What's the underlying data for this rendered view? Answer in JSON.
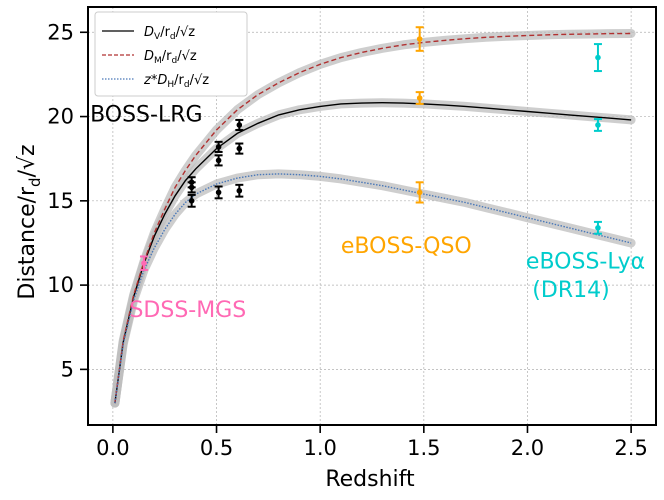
{
  "chart_data": {
    "type": "line",
    "xlabel": "Redshift",
    "ylabel": "Distance/r",
    "ylabel_sub": "d",
    "ylabel_tail": "/√z",
    "xlim": [
      -0.12,
      2.62
    ],
    "ylim": [
      1.7,
      26.5
    ],
    "xticks": [
      0.0,
      0.5,
      1.0,
      1.5,
      2.0,
      2.5
    ],
    "xtick_labels": [
      "0.0",
      "0.5",
      "1.0",
      "1.5",
      "2.0",
      "2.5"
    ],
    "yticks": [
      5,
      10,
      15,
      20,
      25
    ],
    "ytick_labels": [
      "5",
      "10",
      "15",
      "20",
      "25"
    ],
    "grid": true,
    "legend": {
      "position": "top-left",
      "entries": [
        {
          "main": "D",
          "sub": "V",
          "mid": "/r",
          "sub2": "d",
          "tail": "/√z"
        },
        {
          "main": "D",
          "sub": "M",
          "mid": "/r",
          "sub2": "d",
          "tail": "/√z"
        },
        {
          "main": "z*D",
          "sub": "H",
          "mid": "/r",
          "sub2": "d",
          "tail": "/√z"
        }
      ]
    },
    "series": [
      {
        "name": "DV/rd/sqrt(z)",
        "color": "#000000",
        "style": "solid",
        "x": [
          0.01,
          0.05,
          0.1,
          0.15,
          0.2,
          0.25,
          0.3,
          0.35,
          0.4,
          0.5,
          0.6,
          0.7,
          0.8,
          0.9,
          1.0,
          1.1,
          1.2,
          1.3,
          1.4,
          1.5,
          1.6,
          1.7,
          1.8,
          1.9,
          2.0,
          2.1,
          2.2,
          2.3,
          2.4,
          2.5
        ],
        "y": [
          3.0,
          6.6,
          9.3,
          11.3,
          12.9,
          14.2,
          15.3,
          16.2,
          16.9,
          18.1,
          19.0,
          19.6,
          20.1,
          20.4,
          20.6,
          20.75,
          20.8,
          20.82,
          20.8,
          20.75,
          20.68,
          20.6,
          20.5,
          20.4,
          20.3,
          20.2,
          20.1,
          20.0,
          19.9,
          19.8
        ]
      },
      {
        "name": "DM/rd/sqrt(z)",
        "color": "#b03030",
        "style": "dashed",
        "x": [
          0.01,
          0.05,
          0.1,
          0.15,
          0.2,
          0.25,
          0.3,
          0.35,
          0.4,
          0.5,
          0.6,
          0.7,
          0.8,
          0.9,
          1.0,
          1.1,
          1.2,
          1.3,
          1.4,
          1.5,
          1.6,
          1.7,
          1.8,
          1.9,
          2.0,
          2.1,
          2.2,
          2.3,
          2.4,
          2.5
        ],
        "y": [
          3.0,
          6.7,
          9.4,
          11.4,
          13.1,
          14.5,
          15.8,
          16.8,
          17.7,
          19.2,
          20.4,
          21.3,
          22.0,
          22.6,
          23.1,
          23.5,
          23.8,
          24.05,
          24.25,
          24.4,
          24.52,
          24.62,
          24.7,
          24.76,
          24.81,
          24.85,
          24.88,
          24.9,
          24.92,
          24.93
        ]
      },
      {
        "name": "z*DH/rd/sqrt(z)",
        "color": "#4a78b8",
        "style": "dotted",
        "x": [
          0.01,
          0.05,
          0.1,
          0.15,
          0.2,
          0.25,
          0.3,
          0.35,
          0.4,
          0.5,
          0.6,
          0.7,
          0.8,
          0.9,
          1.0,
          1.1,
          1.2,
          1.3,
          1.4,
          1.5,
          1.6,
          1.7,
          1.8,
          1.9,
          2.0,
          2.1,
          2.2,
          2.3,
          2.4,
          2.5
        ],
        "y": [
          3.0,
          6.5,
          9.1,
          10.9,
          12.2,
          13.3,
          14.2,
          14.9,
          15.4,
          16.0,
          16.35,
          16.55,
          16.6,
          16.55,
          16.45,
          16.3,
          16.1,
          15.9,
          15.65,
          15.4,
          15.15,
          14.9,
          14.6,
          14.3,
          14.0,
          13.7,
          13.4,
          13.1,
          12.8,
          12.5
        ]
      }
    ],
    "points": [
      {
        "name": "SDSS-MGS",
        "x": 0.15,
        "y": 11.3,
        "err": 0.4,
        "color": "#ff69b4"
      },
      {
        "name": "BOSS-LRG DM z0.38",
        "x": 0.38,
        "y": 16.1,
        "err": 0.3,
        "color": "#000000"
      },
      {
        "name": "BOSS-LRG DV z0.38",
        "x": 0.38,
        "y": 15.8,
        "err": 0.3,
        "color": "#000000"
      },
      {
        "name": "BOSS-LRG zDH z0.38",
        "x": 0.38,
        "y": 15.0,
        "err": 0.35,
        "color": "#000000"
      },
      {
        "name": "BOSS-LRG DM z0.51",
        "x": 0.51,
        "y": 18.2,
        "err": 0.3,
        "color": "#000000"
      },
      {
        "name": "BOSS-LRG DV z0.51",
        "x": 0.51,
        "y": 17.4,
        "err": 0.3,
        "color": "#000000"
      },
      {
        "name": "BOSS-LRG zDH z0.51",
        "x": 0.51,
        "y": 15.5,
        "err": 0.35,
        "color": "#000000"
      },
      {
        "name": "BOSS-LRG DM z0.61",
        "x": 0.61,
        "y": 19.5,
        "err": 0.3,
        "color": "#000000"
      },
      {
        "name": "BOSS-LRG DV z0.61",
        "x": 0.61,
        "y": 18.1,
        "err": 0.3,
        "color": "#000000"
      },
      {
        "name": "BOSS-LRG zDH z0.61",
        "x": 0.61,
        "y": 15.6,
        "err": 0.35,
        "color": "#000000"
      },
      {
        "name": "eBOSS-QSO DM",
        "x": 1.48,
        "y": 24.6,
        "err": 0.7,
        "color": "#ffa500"
      },
      {
        "name": "eBOSS-QSO DV",
        "x": 1.48,
        "y": 21.1,
        "err": 0.35,
        "color": "#ffa500"
      },
      {
        "name": "eBOSS-QSO zDH",
        "x": 1.48,
        "y": 15.5,
        "err": 0.6,
        "color": "#ffa500"
      },
      {
        "name": "eBOSS-Lya DM",
        "x": 2.34,
        "y": 23.5,
        "err": 0.8,
        "color": "#00cccc"
      },
      {
        "name": "eBOSS-Lya DV",
        "x": 2.34,
        "y": 19.5,
        "err": 0.35,
        "color": "#00cccc"
      },
      {
        "name": "eBOSS-Lya zDH",
        "x": 2.34,
        "y": 13.4,
        "err": 0.35,
        "color": "#00cccc"
      }
    ],
    "annotations": [
      {
        "text": "BOSS-LRG",
        "x": -0.11,
        "y": 19.7,
        "color": "#000000",
        "anchor": "start"
      },
      {
        "text": "SDSS-MGS",
        "x": 0.08,
        "y": 8.1,
        "color": "#ff69b4",
        "anchor": "start"
      },
      {
        "text": "eBOSS-QSO",
        "x": 1.1,
        "y": 11.9,
        "color": "#ffa500",
        "anchor": "start"
      },
      {
        "text": "eBOSS-Lyα",
        "x": 2.28,
        "y": 11.0,
        "color": "#00cccc",
        "anchor": "middle"
      },
      {
        "text": "(DR14)",
        "x": 2.21,
        "y": 9.3,
        "color": "#00cccc",
        "anchor": "middle"
      }
    ]
  }
}
